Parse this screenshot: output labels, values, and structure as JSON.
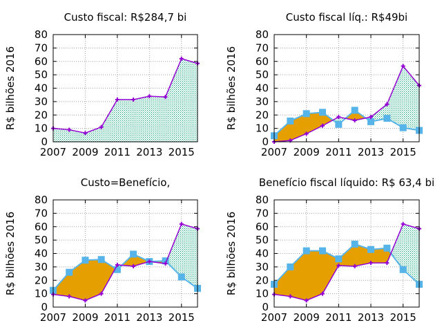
{
  "colors": {
    "cost_line": "#9400d3",
    "benefit_line": "#56b4e9",
    "hatch": "#009e73",
    "overlap_fill": "#e69f00"
  },
  "chart_data": [
    {
      "type": "area",
      "title": "Custo fiscal: R$284,7 bi",
      "ylabel": "R$ bilhões 2016",
      "xlim": [
        2007,
        2016
      ],
      "ylim": [
        0,
        80
      ],
      "xticks": [
        "2007",
        "2009",
        "2011",
        "2013",
        "2015"
      ],
      "yticks": [
        "0",
        "10",
        "20",
        "30",
        "40",
        "50",
        "60",
        "70",
        "80"
      ],
      "grid": true,
      "x": [
        2007,
        2008,
        2009,
        2010,
        2011,
        2012,
        2013,
        2014,
        2015,
        2016
      ],
      "series": [
        {
          "values": [
            10,
            9,
            6.5,
            11,
            31.5,
            31.5,
            34,
            33.5,
            62,
            58.5
          ]
        }
      ]
    },
    {
      "type": "area",
      "title": "Custo fiscal líq.: R$49bi",
      "ylabel": "R$ bilhões 2016",
      "xlim": [
        2007,
        2016
      ],
      "ylim": [
        0,
        80
      ],
      "xticks": [
        "2007",
        "2009",
        "2011",
        "2013",
        "2015"
      ],
      "yticks": [
        "0",
        "10",
        "20",
        "30",
        "40",
        "50",
        "60",
        "70",
        "80"
      ],
      "grid": true,
      "x": [
        2007,
        2008,
        2009,
        2010,
        2011,
        2012,
        2013,
        2014,
        2015,
        2016
      ],
      "series": [
        {
          "values": [
            0,
            1,
            6,
            12,
            18.5,
            16,
            18.5,
            28,
            56.5,
            42
          ]
        },
        {
          "values": [
            4.5,
            15.5,
            21,
            22,
            13,
            23.5,
            15,
            17.5,
            10.5,
            8.5
          ]
        }
      ]
    },
    {
      "type": "area",
      "title": "Custo=Benefício,",
      "ylabel": "R$ bilhões 2016",
      "xlim": [
        2007,
        2016
      ],
      "ylim": [
        0,
        80
      ],
      "xticks": [
        "2007",
        "2009",
        "2011",
        "2013",
        "2015"
      ],
      "yticks": [
        "0",
        "10",
        "20",
        "30",
        "40",
        "50",
        "60",
        "70",
        "80"
      ],
      "grid": true,
      "x": [
        2007,
        2008,
        2009,
        2010,
        2011,
        2012,
        2013,
        2014,
        2015,
        2016
      ],
      "series": [
        {
          "values": [
            9.5,
            8,
            5,
            10,
            31.5,
            30.5,
            34,
            32.5,
            62,
            58.5
          ]
        },
        {
          "values": [
            12.5,
            26,
            35,
            35.5,
            28,
            39.5,
            34,
            34.5,
            22.5,
            14
          ]
        }
      ]
    },
    {
      "type": "area",
      "title": "Benefício fiscal líquido: R$ 63,4 bi",
      "ylabel": "R$ bilhões 2016",
      "xlim": [
        2007,
        2016
      ],
      "ylim": [
        0,
        80
      ],
      "xticks": [
        "2007",
        "2009",
        "2011",
        "2013",
        "2015"
      ],
      "yticks": [
        "0",
        "10",
        "20",
        "30",
        "40",
        "50",
        "60",
        "70",
        "80"
      ],
      "grid": true,
      "x": [
        2007,
        2008,
        2009,
        2010,
        2011,
        2012,
        2013,
        2014,
        2015,
        2016
      ],
      "series": [
        {
          "values": [
            9.5,
            8,
            5,
            10,
            31,
            30.5,
            33,
            33,
            62,
            58.5
          ]
        },
        {
          "values": [
            17,
            30,
            42,
            42,
            36,
            47,
            43,
            44,
            28,
            17
          ]
        }
      ]
    }
  ]
}
